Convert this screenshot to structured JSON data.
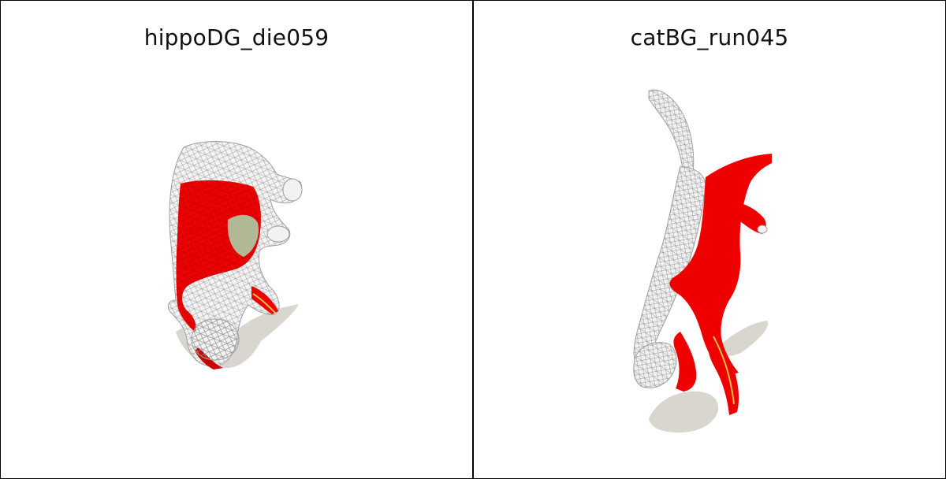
{
  "panels": [
    {
      "title": "hippoDG_die059",
      "render": "hippo-mesh"
    },
    {
      "title": "catBG_run045",
      "render": "cat-mesh"
    }
  ],
  "colors": {
    "background": "#ffffff",
    "border": "#000000",
    "shadow": "#d8d6cf",
    "mesh_wire": "#bfbfbf",
    "mesh_fill": "#f4f4f4",
    "highlight_red": "#ee0000",
    "highlight_green": "#a8d8b0",
    "highlight_yellow": "#e0c040"
  }
}
